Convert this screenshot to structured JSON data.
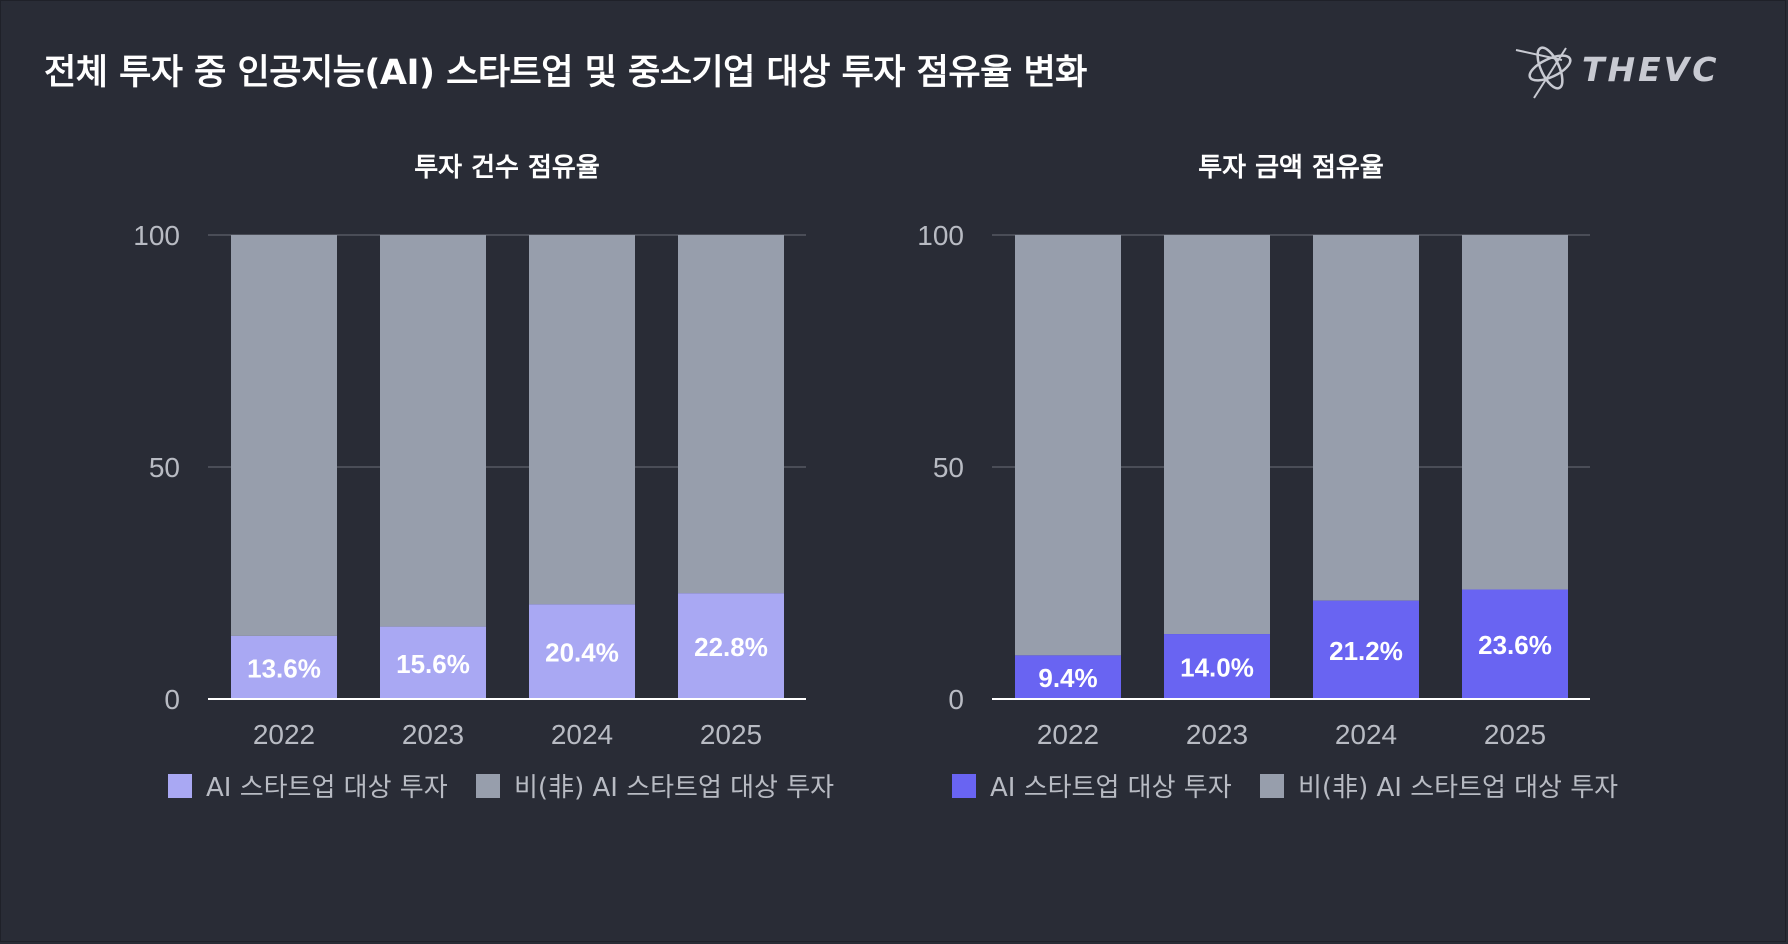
{
  "header": {
    "title": "전체 투자 중 인공지능(AI) 스타트업 및 중소기업 대상 투자 점유율 변화",
    "logo_text": "THEVC"
  },
  "colors": {
    "background": "#292c36",
    "non_ai": "#979eac",
    "ai_count": "#a9a8f3",
    "ai_amount": "#6964f2",
    "axis_text": "#b8bbc3",
    "grid": "#6a6e78"
  },
  "chart_data": [
    {
      "type": "bar",
      "stacked": true,
      "title": "투자 건수 점유율",
      "categories": [
        "2022",
        "2023",
        "2024",
        "2025"
      ],
      "series": [
        {
          "name": "AI 스타트업 대상 투자",
          "values": [
            13.6,
            15.6,
            20.4,
            22.8
          ],
          "labels": [
            "13.6%",
            "15.6%",
            "20.4%",
            "22.8%"
          ]
        },
        {
          "name": "비(非) AI 스타트업 대상 투자",
          "values": [
            86.4,
            84.4,
            79.6,
            77.2
          ]
        }
      ],
      "ylim": [
        0,
        100
      ],
      "yticks": [
        "0",
        "50",
        "100"
      ],
      "legend": "bottom"
    },
    {
      "type": "bar",
      "stacked": true,
      "title": "투자 금액 점유율",
      "categories": [
        "2022",
        "2023",
        "2024",
        "2025"
      ],
      "series": [
        {
          "name": "AI 스타트업 대상 투자",
          "values": [
            9.4,
            14.0,
            21.2,
            23.6
          ],
          "labels": [
            "9.4%",
            "14.0%",
            "21.2%",
            "23.6%"
          ]
        },
        {
          "name": "비(非) AI 스타트업 대상 투자",
          "values": [
            90.6,
            86.0,
            78.8,
            76.4
          ]
        }
      ],
      "ylim": [
        0,
        100
      ],
      "yticks": [
        "0",
        "50",
        "100"
      ],
      "legend": "bottom"
    }
  ]
}
